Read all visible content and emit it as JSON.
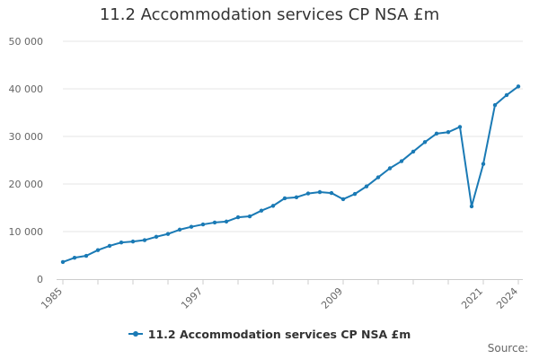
{
  "chart_data": {
    "type": "line",
    "title": "11.2 Accommodation services CP NSA £m",
    "x": [
      1985,
      1986,
      1987,
      1988,
      1989,
      1990,
      1991,
      1992,
      1993,
      1994,
      1995,
      1996,
      1997,
      1998,
      1999,
      2000,
      2001,
      2002,
      2003,
      2004,
      2005,
      2006,
      2007,
      2008,
      2009,
      2010,
      2011,
      2012,
      2013,
      2014,
      2015,
      2016,
      2017,
      2018,
      2019,
      2020,
      2021,
      2022,
      2023,
      2024
    ],
    "series": [
      {
        "name": "11.2 Accommodation services CP NSA £m",
        "color": "#1a7ab5",
        "values": [
          3600,
          4500,
          4900,
          6100,
          7000,
          7700,
          7900,
          8200,
          8900,
          9500,
          10400,
          11000,
          11500,
          11900,
          12100,
          13000,
          13200,
          14400,
          15400,
          17000,
          17200,
          18000,
          18300,
          18100,
          16800,
          17900,
          19500,
          21400,
          23300,
          24800,
          26800,
          28800,
          30600,
          30900,
          32000,
          15300,
          24200,
          36600,
          38700,
          40500
        ]
      }
    ],
    "xticks": [
      "1985",
      "1997",
      "2009",
      "2021",
      "2024"
    ],
    "yticks": [
      "0",
      "10 000",
      "20 000",
      "30 000",
      "40 000",
      "50 000"
    ],
    "xlim": [
      1985,
      2024
    ],
    "ylim": [
      0,
      50000
    ],
    "grid": true,
    "legend_position": "bottom",
    "source_label": "Source:"
  }
}
